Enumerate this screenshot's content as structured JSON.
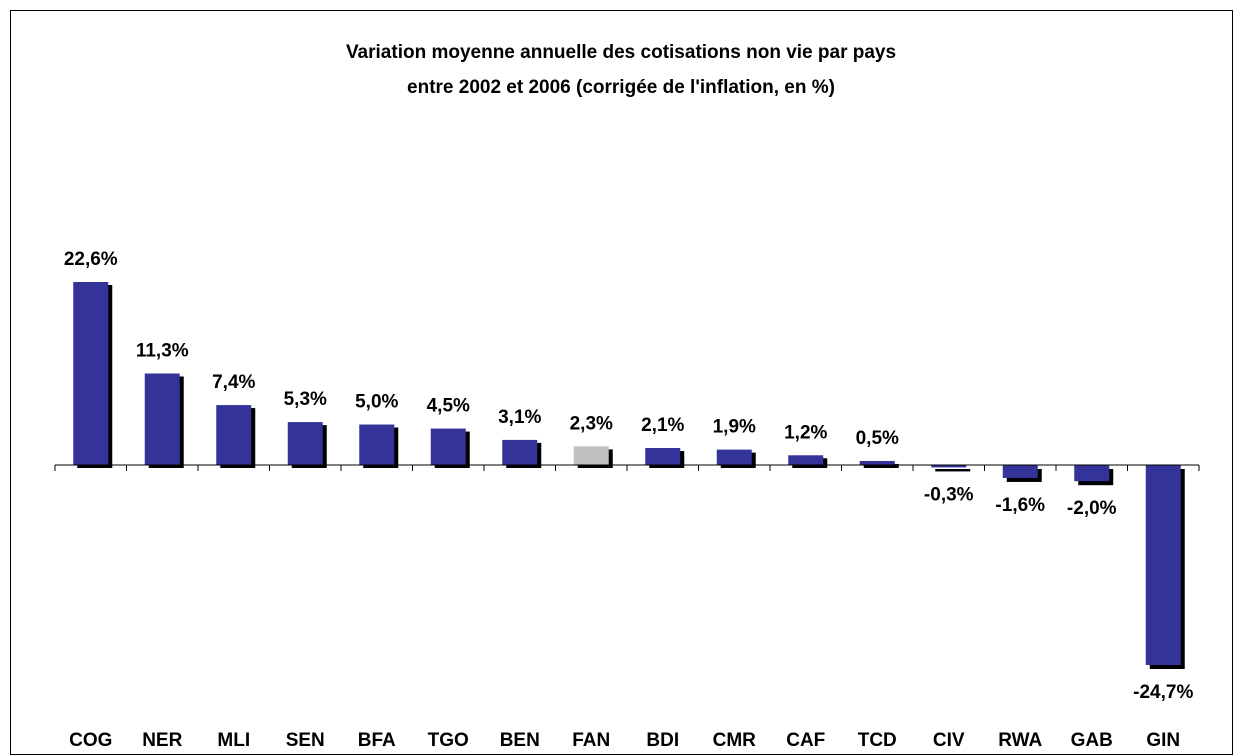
{
  "chart_data": {
    "type": "bar",
    "title": [
      "Variation moyenne annuelle des cotisations non vie par pays",
      "entre 2002 et 2006  (corrigée de l'inflation, en %)"
    ],
    "categories": [
      "COG",
      "NER",
      "MLI",
      "SEN",
      "BFA",
      "TGO",
      "BEN",
      "FAN",
      "BDI",
      "CMR",
      "CAF",
      "TCD",
      "CIV",
      "RWA",
      "GAB",
      "GIN"
    ],
    "values": [
      22.6,
      11.3,
      7.4,
      5.3,
      5.0,
      4.5,
      3.1,
      2.3,
      2.1,
      1.9,
      1.2,
      0.5,
      -0.3,
      -1.6,
      -2.0,
      -24.7
    ],
    "value_labels": [
      "22,6%",
      "11,3%",
      "7,4%",
      "5,3%",
      "5,0%",
      "4,5%",
      "3,1%",
      "2,3%",
      "2,1%",
      "1,9%",
      "1,2%",
      "0,5%",
      "-0,3%",
      "-1,6%",
      "-2,0%",
      "-24,7%"
    ],
    "colors": [
      "#333399",
      "#333399",
      "#333399",
      "#333399",
      "#333399",
      "#333399",
      "#333399",
      "#c0c0c0",
      "#333399",
      "#333399",
      "#333399",
      "#333399",
      "#333399",
      "#333399",
      "#333399",
      "#333399"
    ]
  }
}
